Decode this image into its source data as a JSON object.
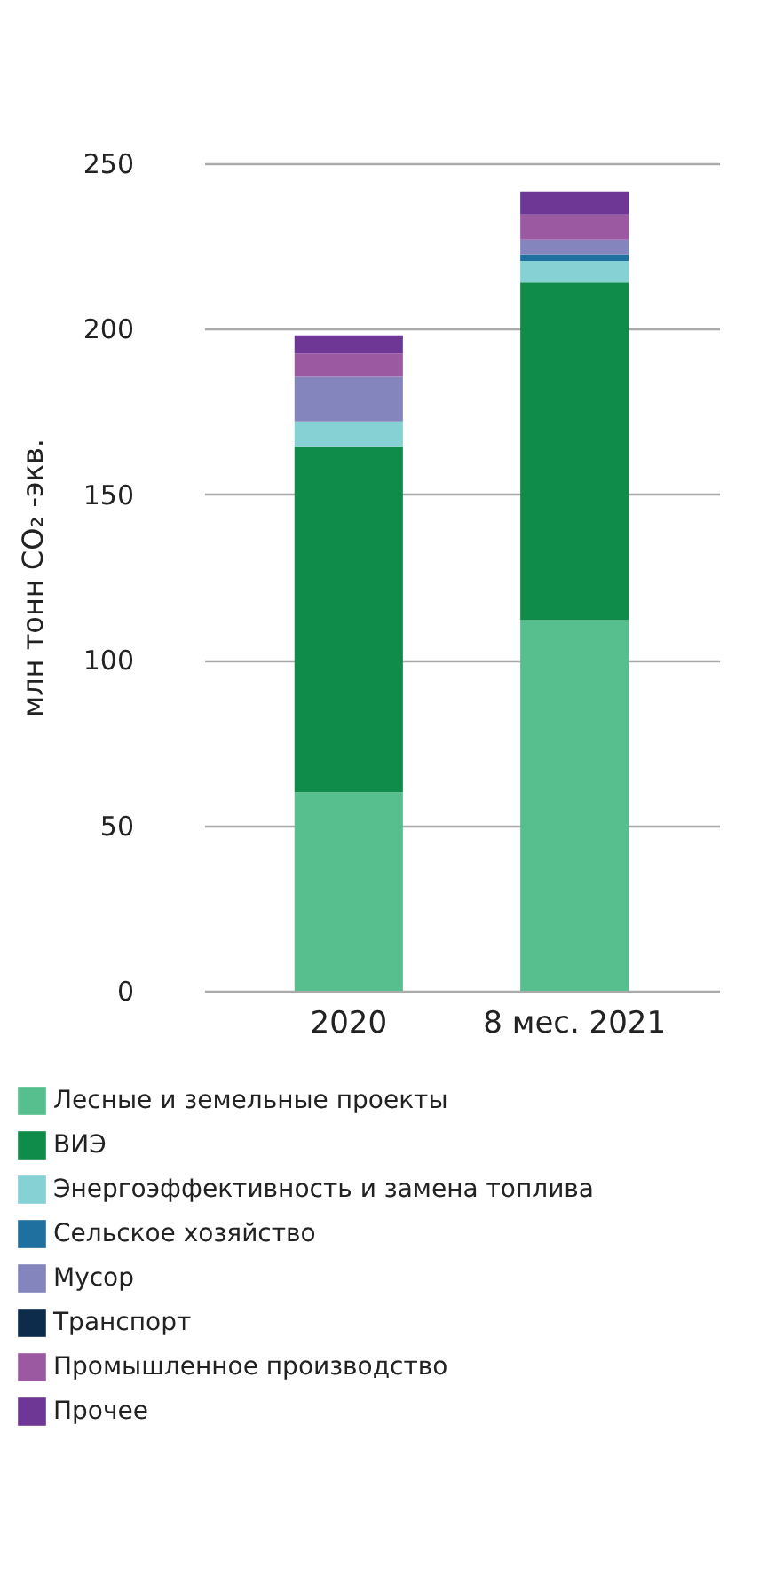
{
  "chart_data": {
    "type": "bar",
    "stacked": true,
    "ylabel": "млн тонн CO₂ -экв.",
    "categories": [
      "2020",
      "8 мес. 2021"
    ],
    "series": [
      {
        "name": "Лесные и земельные проекты",
        "color": "#57bf8e",
        "values": [
          60,
          112
        ]
      },
      {
        "name": "ВИЭ",
        "color": "#0f8c4a",
        "values": [
          104.5,
          102
        ]
      },
      {
        "name": "Энергоэффективность и замена топлива",
        "color": "#86d1d4",
        "values": [
          7.5,
          6.5
        ]
      },
      {
        "name": "Сельское хозяйство",
        "color": "#1f6f9f",
        "values": [
          null,
          2
        ]
      },
      {
        "name": "Мусор",
        "color": "#8585bd",
        "values": [
          13.5,
          4.5
        ]
      },
      {
        "name": "Транспорт",
        "color": "#0d2b4a",
        "values": [
          null,
          null
        ]
      },
      {
        "name": "Промышленное производство",
        "color": "#9b59a2",
        "values": [
          7,
          7.5
        ]
      },
      {
        "name": "Прочее",
        "color": "#6f3795",
        "values": [
          5.5,
          7
        ]
      }
    ],
    "ylim": [
      0,
      250
    ],
    "yticks": [
      0,
      50,
      100,
      150,
      200,
      250
    ],
    "grid": "y",
    "legend": "bottom"
  }
}
